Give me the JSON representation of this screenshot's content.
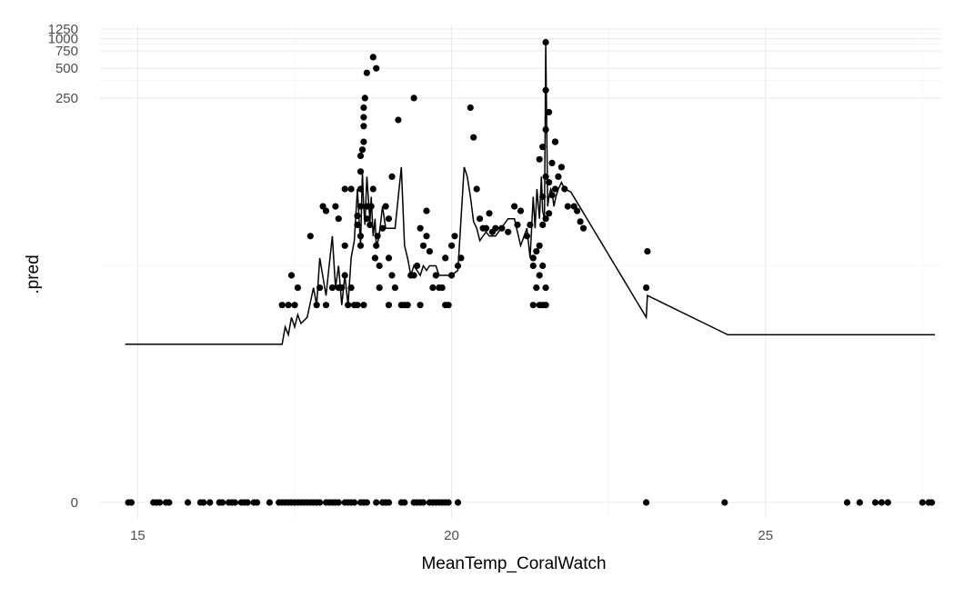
{
  "chart_data": {
    "type": "scatter",
    "title": "",
    "xlabel": "MeanTemp_CoralWatch",
    "ylabel": ".pred",
    "x_ticks": [
      15,
      20,
      25
    ],
    "y_ticks": [
      0,
      250,
      500,
      750,
      1000,
      1250
    ],
    "y_scale": "pseudo_log",
    "xlim": [
      14.4,
      27.8
    ],
    "ylim": [
      0,
      1250
    ],
    "grid": true,
    "legend": "none",
    "colors": {
      "points": "#000000",
      "line": "#000000",
      "grid": "#ebebeb"
    },
    "series": [
      {
        "type": "line",
        "x": [
          14.8,
          17.3,
          17.35,
          17.4,
          17.45,
          17.5,
          17.55,
          17.6,
          17.7,
          17.8,
          17.85,
          17.9,
          18.0,
          18.1,
          18.15,
          18.2,
          18.25,
          18.3,
          18.35,
          18.4,
          18.45,
          18.5,
          18.55,
          18.58,
          18.6,
          18.62,
          18.65,
          18.7,
          18.72,
          18.75,
          18.78,
          18.8,
          18.83,
          18.86,
          18.9,
          18.95,
          19.0,
          19.1,
          19.2,
          19.25,
          19.3,
          19.35,
          19.4,
          19.5,
          19.55,
          19.6,
          19.65,
          19.7,
          19.75,
          19.8,
          19.9,
          20.0,
          20.1,
          20.2,
          20.25,
          20.3,
          20.35,
          20.4,
          20.45,
          20.5,
          20.55,
          20.6,
          20.7,
          20.9,
          21.0,
          21.05,
          21.1,
          21.2,
          21.25,
          21.3,
          21.33,
          21.36,
          21.4,
          21.43,
          21.45,
          21.48,
          21.5,
          21.53,
          21.55,
          21.58,
          21.6,
          21.63,
          21.66,
          21.7,
          21.75,
          21.8,
          21.9,
          23.1,
          23.12,
          24.4,
          27.7
        ],
        "y": [
          0.8,
          0.8,
          1.2,
          1.0,
          1.5,
          1.2,
          1.6,
          1.3,
          1.5,
          3,
          2,
          6,
          2.5,
          10,
          3,
          5,
          2,
          4,
          2,
          6,
          9,
          30,
          8,
          45,
          20,
          13,
          40,
          14,
          25,
          10,
          15,
          8,
          9,
          12,
          20,
          12,
          12,
          12,
          50,
          8,
          6,
          4,
          5,
          4,
          5,
          4.5,
          5,
          5,
          5,
          4,
          4,
          4,
          4.5,
          50,
          40,
          25,
          14,
          12,
          9,
          10,
          11,
          10,
          10,
          15,
          15,
          11,
          8,
          12,
          6,
          25,
          12,
          30,
          15,
          40,
          18,
          15,
          900,
          20,
          25,
          30,
          28,
          20,
          25,
          30,
          35,
          30,
          28,
          1.5,
          2.5,
          1.0,
          1.0
        ]
      },
      {
        "type": "scatter",
        "points": [
          [
            14.85,
            0
          ],
          [
            14.9,
            0
          ],
          [
            15.25,
            0
          ],
          [
            15.3,
            0
          ],
          [
            15.35,
            0
          ],
          [
            15.45,
            0
          ],
          [
            15.5,
            0
          ],
          [
            15.8,
            0
          ],
          [
            16.0,
            0
          ],
          [
            16.05,
            0
          ],
          [
            16.15,
            0
          ],
          [
            16.3,
            0
          ],
          [
            16.35,
            0
          ],
          [
            16.45,
            0
          ],
          [
            16.5,
            0
          ],
          [
            16.55,
            0
          ],
          [
            16.65,
            0
          ],
          [
            16.7,
            0
          ],
          [
            16.75,
            0
          ],
          [
            16.85,
            0
          ],
          [
            16.9,
            0
          ],
          [
            17.1,
            0
          ],
          [
            17.25,
            0
          ],
          [
            17.3,
            0
          ],
          [
            17.35,
            0
          ],
          [
            17.4,
            0
          ],
          [
            17.45,
            0
          ],
          [
            17.5,
            0
          ],
          [
            17.55,
            0
          ],
          [
            17.6,
            0
          ],
          [
            17.65,
            0
          ],
          [
            17.7,
            0
          ],
          [
            17.75,
            0
          ],
          [
            17.8,
            0
          ],
          [
            17.85,
            0
          ],
          [
            17.9,
            0
          ],
          [
            18.0,
            0
          ],
          [
            18.05,
            0
          ],
          [
            18.1,
            0
          ],
          [
            18.15,
            0
          ],
          [
            18.2,
            0
          ],
          [
            18.3,
            0
          ],
          [
            18.35,
            0
          ],
          [
            18.4,
            0
          ],
          [
            18.45,
            0
          ],
          [
            18.55,
            0
          ],
          [
            18.6,
            0
          ],
          [
            18.65,
            0
          ],
          [
            18.8,
            0
          ],
          [
            18.9,
            0
          ],
          [
            18.95,
            0
          ],
          [
            19.0,
            0
          ],
          [
            19.2,
            0
          ],
          [
            19.25,
            0
          ],
          [
            19.4,
            0
          ],
          [
            19.45,
            0
          ],
          [
            19.5,
            0
          ],
          [
            19.55,
            0
          ],
          [
            19.65,
            0
          ],
          [
            19.7,
            0
          ],
          [
            19.75,
            0
          ],
          [
            19.8,
            0
          ],
          [
            19.85,
            0
          ],
          [
            19.9,
            0
          ],
          [
            19.95,
            0
          ],
          [
            20.1,
            0
          ],
          [
            23.1,
            0
          ],
          [
            24.35,
            0
          ],
          [
            26.3,
            0
          ],
          [
            26.5,
            0
          ],
          [
            26.75,
            0
          ],
          [
            26.85,
            0
          ],
          [
            26.95,
            0
          ],
          [
            27.5,
            0
          ],
          [
            27.6,
            0
          ],
          [
            27.65,
            0
          ],
          [
            17.3,
            2
          ],
          [
            17.4,
            2
          ],
          [
            17.5,
            2
          ],
          [
            17.45,
            4
          ],
          [
            17.55,
            3
          ],
          [
            17.75,
            10
          ],
          [
            17.85,
            2
          ],
          [
            17.9,
            3
          ],
          [
            17.95,
            20
          ],
          [
            18.0,
            2
          ],
          [
            18.1,
            3
          ],
          [
            18.15,
            20
          ],
          [
            18.2,
            3
          ],
          [
            18.25,
            3
          ],
          [
            18.3,
            8
          ],
          [
            18.35,
            2
          ],
          [
            18.4,
            3
          ],
          [
            18.45,
            2
          ],
          [
            18.5,
            2
          ],
          [
            18.55,
            10
          ],
          [
            18.6,
            2
          ],
          [
            18.3,
            4
          ],
          [
            18.2,
            15
          ],
          [
            18.0,
            18
          ],
          [
            18.3,
            30
          ],
          [
            18.4,
            30
          ],
          [
            18.5,
            13
          ],
          [
            18.5,
            16
          ],
          [
            18.55,
            8
          ],
          [
            18.55,
            20
          ],
          [
            18.55,
            30
          ],
          [
            18.55,
            45
          ],
          [
            18.55,
            65
          ],
          [
            18.58,
            75
          ],
          [
            18.6,
            90
          ],
          [
            18.6,
            130
          ],
          [
            18.6,
            160
          ],
          [
            18.6,
            200
          ],
          [
            18.62,
            250
          ],
          [
            18.65,
            20
          ],
          [
            18.65,
            15
          ],
          [
            18.7,
            13
          ],
          [
            18.72,
            20
          ],
          [
            18.75,
            30
          ],
          [
            18.78,
            6
          ],
          [
            18.8,
            8
          ],
          [
            18.82,
            10
          ],
          [
            18.85,
            3
          ],
          [
            18.85,
            5
          ],
          [
            18.9,
            12
          ],
          [
            18.95,
            20
          ],
          [
            19.0,
            15
          ],
          [
            19.05,
            40
          ],
          [
            19.0,
            6
          ],
          [
            19.0,
            2
          ],
          [
            19.05,
            4
          ],
          [
            19.1,
            3
          ],
          [
            19.2,
            2
          ],
          [
            19.25,
            2
          ],
          [
            19.3,
            2
          ],
          [
            19.35,
            4
          ],
          [
            19.4,
            4
          ],
          [
            19.45,
            5
          ],
          [
            19.5,
            2
          ],
          [
            19.5,
            12
          ],
          [
            19.55,
            8
          ],
          [
            19.6,
            10
          ],
          [
            19.6,
            18
          ],
          [
            19.65,
            7
          ],
          [
            19.7,
            3
          ],
          [
            19.75,
            4
          ],
          [
            19.8,
            3
          ],
          [
            19.85,
            3
          ],
          [
            19.9,
            2
          ],
          [
            19.95,
            2
          ],
          [
            20.0,
            4
          ],
          [
            19.9,
            6
          ],
          [
            20.0,
            8
          ],
          [
            20.05,
            10
          ],
          [
            20.1,
            5
          ],
          [
            20.15,
            6
          ],
          [
            20.3,
            200
          ],
          [
            20.35,
            100
          ],
          [
            20.4,
            30
          ],
          [
            20.45,
            15
          ],
          [
            20.5,
            12
          ],
          [
            20.6,
            17
          ],
          [
            20.65,
            11
          ],
          [
            20.55,
            12
          ],
          [
            20.7,
            12
          ],
          [
            20.8,
            12
          ],
          [
            20.9,
            11
          ],
          [
            21.0,
            20
          ],
          [
            21.05,
            13
          ],
          [
            21.1,
            18
          ],
          [
            21.2,
            10
          ],
          [
            21.25,
            13
          ],
          [
            21.3,
            5
          ],
          [
            21.35,
            3
          ],
          [
            21.3,
            6
          ],
          [
            21.35,
            7
          ],
          [
            21.4,
            8
          ],
          [
            21.3,
            2
          ],
          [
            21.4,
            2
          ],
          [
            21.45,
            2
          ],
          [
            21.5,
            2
          ],
          [
            21.4,
            4
          ],
          [
            21.45,
            5
          ],
          [
            21.5,
            3
          ],
          [
            21.45,
            13
          ],
          [
            21.5,
            15
          ],
          [
            21.55,
            17
          ],
          [
            21.45,
            25
          ],
          [
            21.5,
            40
          ],
          [
            21.4,
            60
          ],
          [
            21.45,
            80
          ],
          [
            21.5,
            120
          ],
          [
            21.55,
            180
          ],
          [
            21.5,
            300
          ],
          [
            21.55,
            35
          ],
          [
            21.6,
            55
          ],
          [
            21.65,
            90
          ],
          [
            21.6,
            26
          ],
          [
            21.65,
            30
          ],
          [
            21.7,
            40
          ],
          [
            21.75,
            50
          ],
          [
            21.8,
            30
          ],
          [
            21.85,
            20
          ],
          [
            21.5,
            920
          ],
          [
            21.95,
            20
          ],
          [
            22.0,
            18
          ],
          [
            22.05,
            14
          ],
          [
            22.1,
            12
          ],
          [
            23.1,
            3
          ],
          [
            23.12,
            7
          ],
          [
            18.65,
            450
          ],
          [
            18.75,
            650
          ],
          [
            18.8,
            500
          ],
          [
            19.15,
            150
          ],
          [
            19.4,
            250
          ],
          [
            21.65,
            90
          ]
        ]
      }
    ]
  }
}
